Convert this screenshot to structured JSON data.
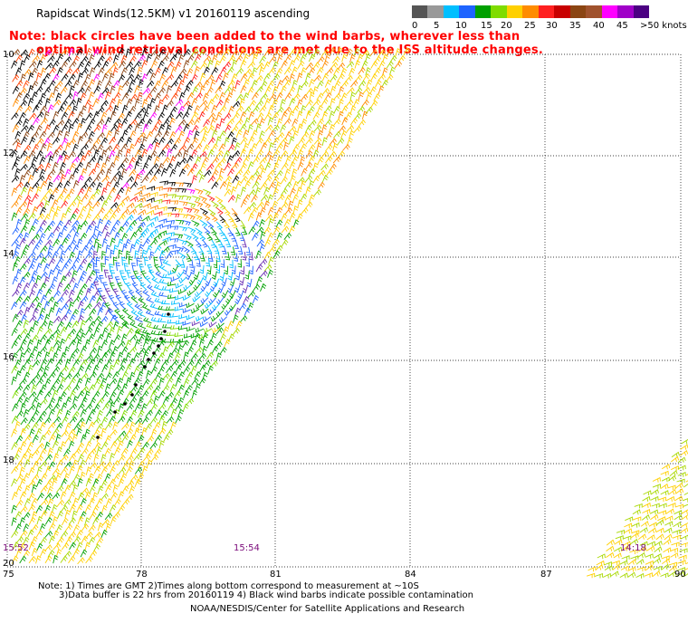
{
  "header": {
    "title": "Rapidscat Winds(12.5KM) v1 20160119 ascending",
    "note_line1": "Note: black circles have been added to the wind barbs, wherever less than",
    "note_line2": "optimal wind retrieval conditions are met due to the ISS altitude changes."
  },
  "legend": {
    "ticks": [
      "0",
      "5",
      "10",
      "15",
      "20",
      "25",
      "30",
      "35",
      "40",
      "45",
      ">50 knots"
    ],
    "colors": [
      "#555555",
      "#999999",
      "#00bfff",
      "#1e64ff",
      "#00a000",
      "#7fdc00",
      "#ffd000",
      "#ff8c00",
      "#ff2020",
      "#c80000",
      "#8b4513",
      "#a0522d",
      "#ff00ff",
      "#a000c8",
      "#4b0082"
    ]
  },
  "axes": {
    "lon_labels": [
      "75",
      "78",
      "81",
      "84",
      "87",
      "90"
    ],
    "lat_labels": [
      "10",
      "12",
      "14",
      "16",
      "18",
      "20"
    ]
  },
  "times": {
    "t1": "15:52",
    "t2": "15:54",
    "t3": "14:18"
  },
  "footer": {
    "line1": "Note: 1) Times are GMT 2)Times along bottom correspond to measurement at ~10S",
    "line2": "3)Data buffer is 22 hrs from 20160119 4) Black wind barbs indicate possible contamination",
    "line3": "NOAA/NESDIS/Center for Satellite Applications and Research"
  }
}
